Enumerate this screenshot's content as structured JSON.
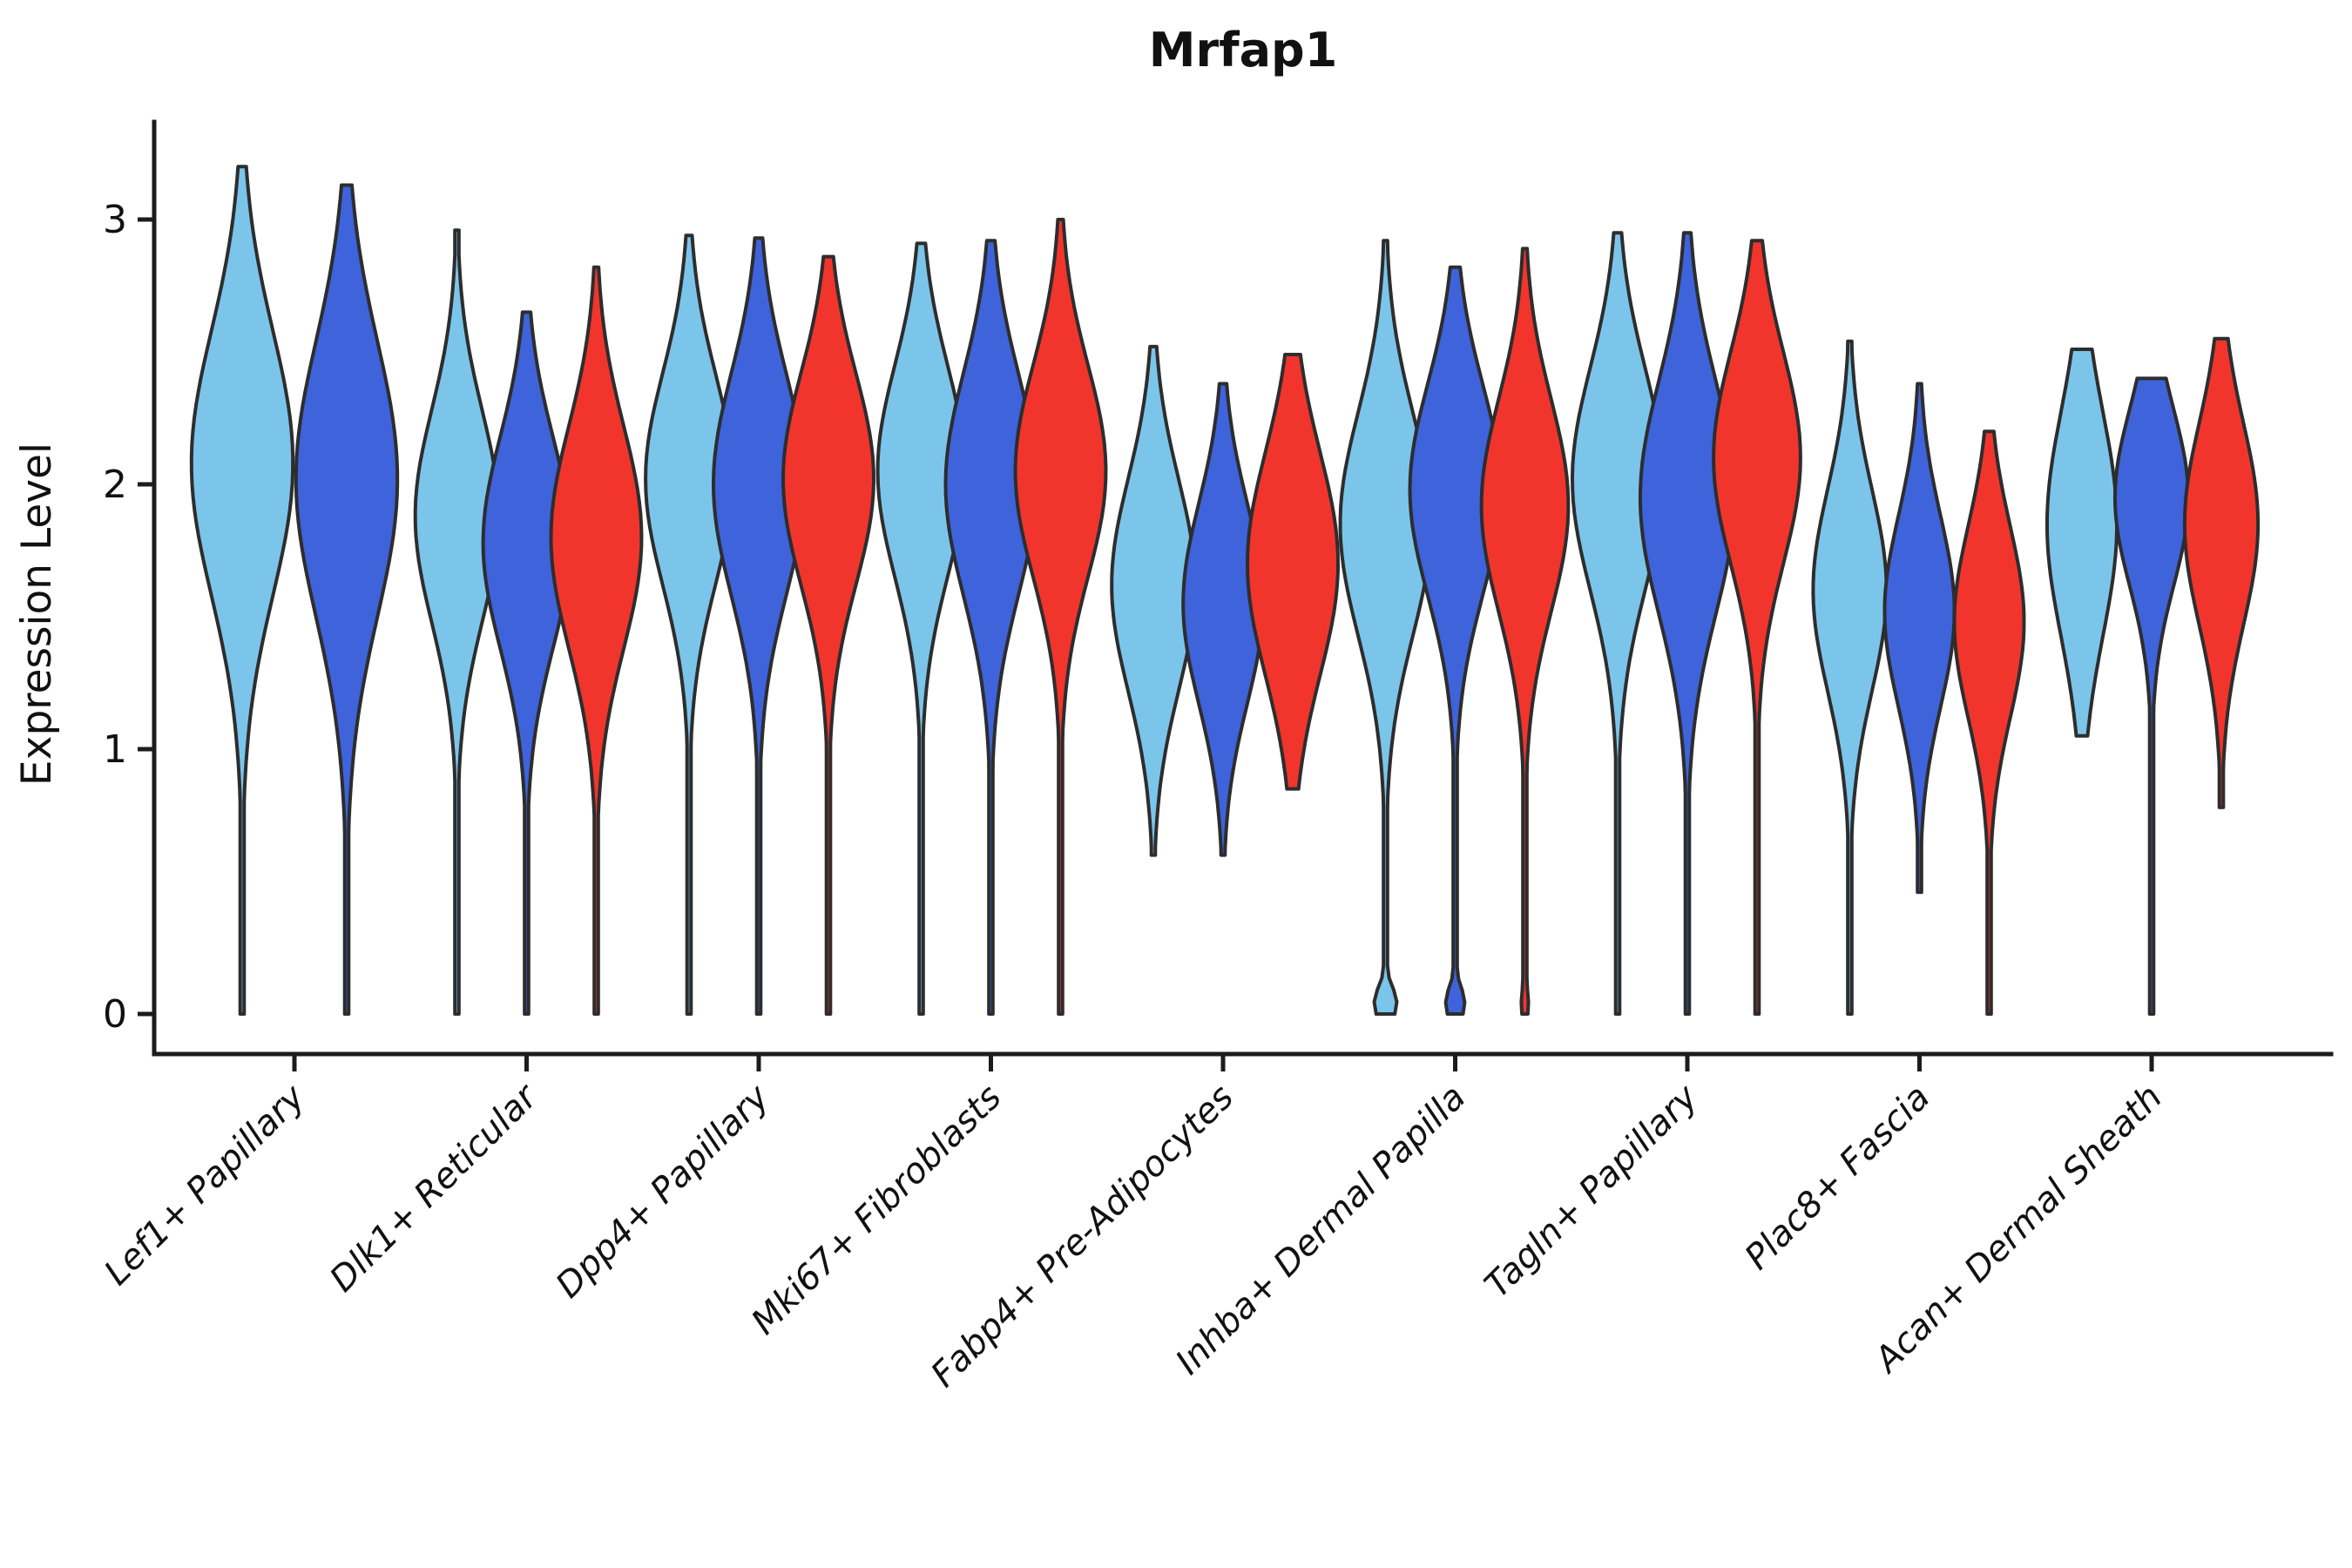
{
  "chart_data": {
    "type": "violin",
    "title": "Mrfap1",
    "ylabel": "Expression Level",
    "yticks": [
      0,
      1,
      2,
      3
    ],
    "ylim": [
      -0.15,
      3.4
    ],
    "grid": false,
    "legend": "none",
    "categories": [
      "Lef1+ Papillary",
      "Dlk1+ Reticular",
      "Dpp4+ Papillary",
      "Mki67+ Fibroblasts",
      "Fabp4+ Pre-Adipocytes",
      "Inhba+ Dermal Papilla",
      "Tagln+ Papillary",
      "Plac8+ Fascia",
      "Acan+ Dermal Sheath"
    ],
    "series": [
      {
        "name": "lightblue",
        "color": "#7CC5EA",
        "violins": [
          {
            "min": 0,
            "max": 3.2,
            "peak": 2.08,
            "spread": 0.5,
            "width": 1.12,
            "zero_blob": 0
          },
          {
            "min": 0,
            "max": 2.96,
            "peak": 1.88,
            "spread": 0.4,
            "width": 0.92,
            "zero_blob": 0
          },
          {
            "min": 0,
            "max": 2.94,
            "peak": 2.02,
            "spread": 0.4,
            "width": 0.96,
            "zero_blob": 0
          },
          {
            "min": 0,
            "max": 2.91,
            "peak": 2.05,
            "spread": 0.4,
            "width": 0.96,
            "zero_blob": 0
          },
          {
            "min": 0.6,
            "max": 2.52,
            "peak": 1.62,
            "spread": 0.4,
            "width": 0.92,
            "zero_blob": 0
          },
          {
            "min": 0,
            "max": 2.92,
            "peak": 1.85,
            "spread": 0.42,
            "width": 1.0,
            "zero_blob": 0.25
          },
          {
            "min": 0,
            "max": 2.95,
            "peak": 2.02,
            "spread": 0.42,
            "width": 1.0,
            "zero_blob": 0
          },
          {
            "min": 0,
            "max": 2.54,
            "peak": 1.6,
            "spread": 0.38,
            "width": 0.81,
            "zero_blob": 0
          },
          {
            "min": 1.05,
            "max": 2.51,
            "peak": 1.85,
            "spread": 0.42,
            "width": 0.77,
            "zero_blob": 0
          }
        ]
      },
      {
        "name": "blue",
        "color": "#3E63DB",
        "violins": [
          {
            "min": 0,
            "max": 3.13,
            "peak": 2.02,
            "spread": 0.52,
            "width": 1.12,
            "zero_blob": 0
          },
          {
            "min": 0,
            "max": 2.65,
            "peak": 1.78,
            "spread": 0.4,
            "width": 0.96,
            "zero_blob": 0
          },
          {
            "min": 0,
            "max": 2.93,
            "peak": 2.0,
            "spread": 0.42,
            "width": 1.0,
            "zero_blob": 0
          },
          {
            "min": 0,
            "max": 2.92,
            "peak": 2.0,
            "spread": 0.42,
            "width": 1.0,
            "zero_blob": 0
          },
          {
            "min": 0.6,
            "max": 2.38,
            "peak": 1.55,
            "spread": 0.38,
            "width": 0.88,
            "zero_blob": 0
          },
          {
            "min": 0,
            "max": 2.82,
            "peak": 1.98,
            "spread": 0.4,
            "width": 1.0,
            "zero_blob": 0.21
          },
          {
            "min": 0,
            "max": 2.95,
            "peak": 1.95,
            "spread": 0.44,
            "width": 1.04,
            "zero_blob": 0
          },
          {
            "min": 0.46,
            "max": 2.38,
            "peak": 1.52,
            "spread": 0.36,
            "width": 0.77,
            "zero_blob": 0
          },
          {
            "min": 0,
            "max": 2.4,
            "peak": 1.95,
            "spread": 0.33,
            "width": 0.81,
            "zero_blob": 0
          }
        ]
      },
      {
        "name": "red",
        "color": "#F2352C",
        "violins": [
          null,
          {
            "min": 0,
            "max": 2.82,
            "peak": 1.8,
            "spread": 0.42,
            "width": 1.0,
            "zero_blob": 0
          },
          {
            "min": 0,
            "max": 2.86,
            "peak": 2.02,
            "spread": 0.4,
            "width": 1.0,
            "zero_blob": 0
          },
          {
            "min": 0,
            "max": 3.0,
            "peak": 2.05,
            "spread": 0.4,
            "width": 1.0,
            "zero_blob": 0
          },
          {
            "min": 0.85,
            "max": 2.49,
            "peak": 1.7,
            "spread": 0.42,
            "width": 1.0,
            "zero_blob": 0
          },
          {
            "min": 0,
            "max": 2.89,
            "peak": 1.92,
            "spread": 0.4,
            "width": 0.96,
            "zero_blob": 0.08
          },
          {
            "min": 0,
            "max": 2.92,
            "peak": 2.1,
            "spread": 0.4,
            "width": 0.96,
            "zero_blob": 0
          },
          {
            "min": 0,
            "max": 2.2,
            "peak": 1.48,
            "spread": 0.36,
            "width": 0.77,
            "zero_blob": 0
          },
          {
            "min": 0.78,
            "max": 2.55,
            "peak": 1.85,
            "spread": 0.38,
            "width": 0.81,
            "zero_blob": 0
          }
        ]
      }
    ]
  }
}
